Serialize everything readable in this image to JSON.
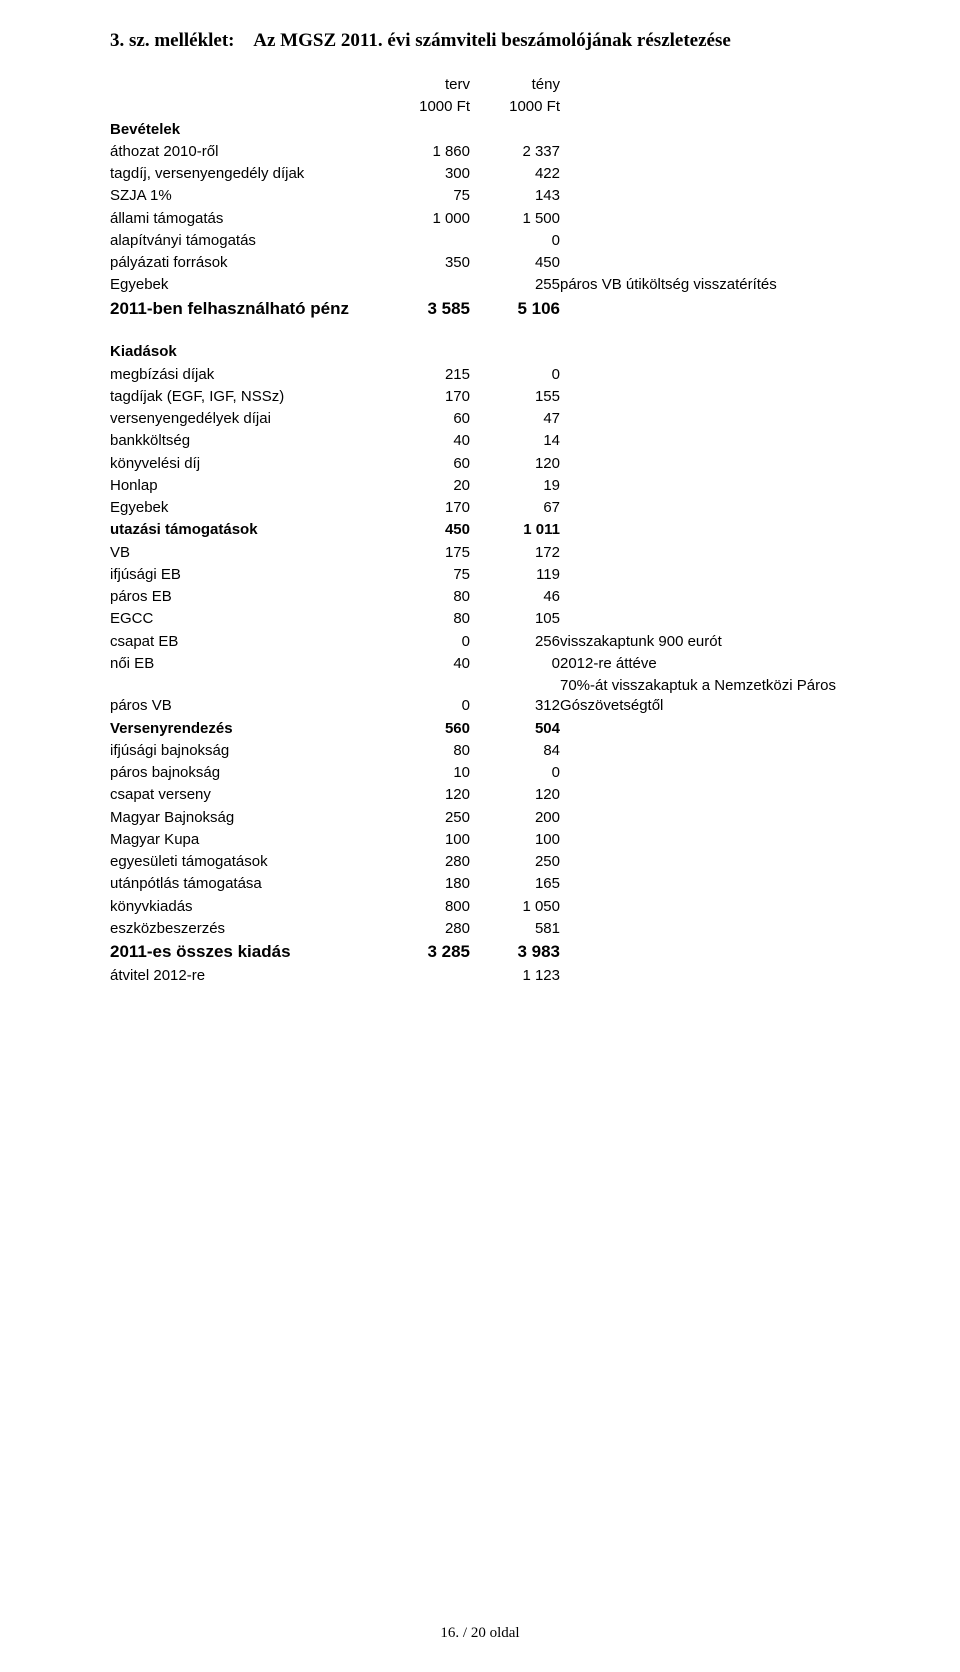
{
  "title": {
    "prefix": "3. sz. melléklet:",
    "main": "Az MGSZ 2011. évi számviteli beszámolójának részletezése"
  },
  "header": {
    "terv": "terv",
    "teny": "tény",
    "unit": "1000 Ft"
  },
  "bevetelek_label": "Bevételek",
  "bevetelek": [
    {
      "label": "áthozat 2010-ről",
      "a": "1 860",
      "b": "2 337"
    },
    {
      "label": "tagdíj, versenyengedély díjak",
      "a": "300",
      "b": "422"
    },
    {
      "label": "SZJA 1%",
      "a": "75",
      "b": "143"
    },
    {
      "label": "állami támogatás",
      "a": "1 000",
      "b": "1 500"
    },
    {
      "label": "alapítványi támogatás",
      "a": "",
      "b": "0"
    },
    {
      "label": "pályázati források",
      "a": "350",
      "b": "450"
    },
    {
      "label": "Egyebek",
      "a": "",
      "b": "255",
      "note": "páros VB útiköltség visszatérítés"
    }
  ],
  "bevetelek_sum": {
    "label": "2011-ben felhasználható pénz",
    "a": "3 585",
    "b": "5 106"
  },
  "kiadasok_label": "Kiadások",
  "kiadasok_top": [
    {
      "label": "megbízási díjak",
      "a": "215",
      "b": "0"
    },
    {
      "label": "tagdíjak (EGF, IGF, NSSz)",
      "a": "170",
      "b": "155"
    },
    {
      "label": "versenyengedélyek díjai",
      "a": "60",
      "b": "47"
    },
    {
      "label": "bankköltség",
      "a": "40",
      "b": "14"
    },
    {
      "label": "könyvelési díj",
      "a": "60",
      "b": "120"
    },
    {
      "label": "Honlap",
      "a": "20",
      "b": "19"
    },
    {
      "label": "Egyebek",
      "a": "170",
      "b": "67"
    }
  ],
  "utazasi_label": {
    "label": "utazási támogatások",
    "a": "450",
    "b": "1 011"
  },
  "utazasi_items": [
    {
      "label": "VB",
      "a": "175",
      "b": "172"
    },
    {
      "label": "ifjúsági EB",
      "a": "75",
      "b": "119"
    },
    {
      "label": "páros EB",
      "a": "80",
      "b": "46"
    },
    {
      "label": "EGCC",
      "a": "80",
      "b": "105"
    },
    {
      "label": "csapat EB",
      "a": "0",
      "b": "256",
      "note": "visszakaptunk 900 eurót"
    },
    {
      "label": "női EB",
      "a": "40",
      "b": "0",
      "note": "2012-re áttéve"
    },
    {
      "label": "páros VB",
      "a": "0",
      "b": "312",
      "note": "70%-át visszakaptuk a Nemzetközi Páros Gószövetségtől"
    }
  ],
  "verseny_label": {
    "label": "Versenyrendezés",
    "a": "560",
    "b": "504"
  },
  "verseny_items": [
    {
      "label": "ifjúsági bajnokság",
      "a": "80",
      "b": "84"
    },
    {
      "label": "páros bajnokság",
      "a": "10",
      "b": "0"
    },
    {
      "label": "csapat verseny",
      "a": "120",
      "b": "120"
    },
    {
      "label": "Magyar Bajnokság",
      "a": "250",
      "b": "200"
    },
    {
      "label": "Magyar Kupa",
      "a": "100",
      "b": "100"
    }
  ],
  "kiadasok_tail": [
    {
      "label": "egyesületi támogatások",
      "a": "280",
      "b": "250"
    },
    {
      "label": "utánpótlás támogatása",
      "a": "180",
      "b": "165"
    },
    {
      "label": "könyvkiadás",
      "a": "800",
      "b": "1 050"
    },
    {
      "label": "eszközbeszerzés",
      "a": "280",
      "b": "581"
    }
  ],
  "kiadasok_sum": {
    "label": "2011-es összes kiadás",
    "a": "3 285",
    "b": "3 983"
  },
  "atvitel": {
    "label": "átvitel 2012-re",
    "a": "",
    "b": "1 123"
  },
  "footer": "16. / 20 oldal"
}
